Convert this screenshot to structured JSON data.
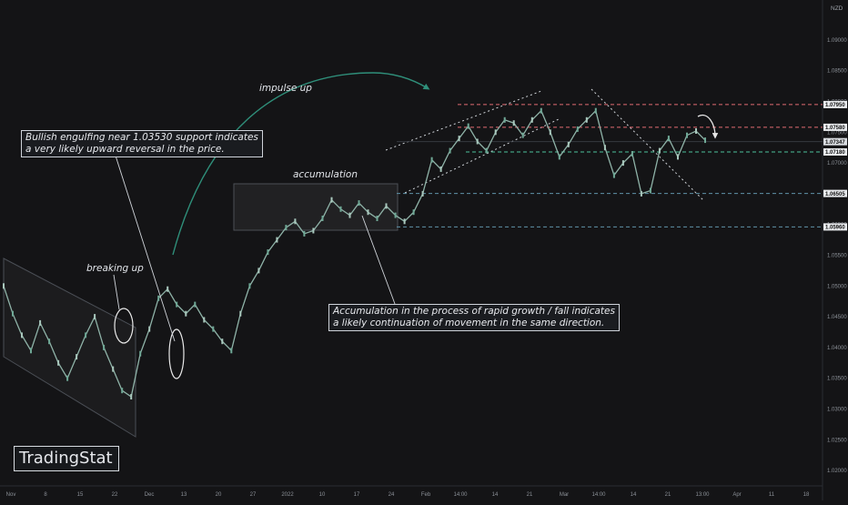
{
  "chart_data": {
    "type": "line",
    "symbol": "NZD",
    "y_ticks": [
      "1.09000",
      "1.08500",
      "1.08000",
      "1.07500",
      "1.07000",
      "1.06500",
      "1.06000",
      "1.05500",
      "1.05000",
      "1.04500",
      "1.04000",
      "1.03500",
      "1.03000",
      "1.02500",
      "1.02000"
    ],
    "ylim": [
      1.0175,
      1.0965
    ],
    "x_ticks": [
      "Nov",
      "8",
      "15",
      "22",
      "Dec",
      "13",
      "20",
      "27",
      "2022",
      "10",
      "17",
      "24",
      "Feb",
      "14:00",
      "14",
      "21",
      "Mar",
      "14:00",
      "14",
      "21",
      "13:00",
      "Apr",
      "11",
      "18"
    ],
    "series": [
      {
        "values": [
          1.05,
          1.0455,
          1.042,
          1.0395,
          1.044,
          1.041,
          1.0375,
          1.035,
          1.0385,
          1.042,
          1.045,
          1.04,
          1.0365,
          1.033,
          1.032,
          1.039,
          1.043,
          1.048,
          1.0495,
          1.047,
          1.0455,
          1.047,
          1.0445,
          1.043,
          1.041,
          1.0395,
          1.0455,
          1.05,
          1.0525,
          1.0555,
          1.0575,
          1.0595,
          1.0605,
          1.0585,
          1.059,
          1.061,
          1.064,
          1.0625,
          1.0615,
          1.0635,
          1.062,
          1.061,
          1.063,
          1.0615,
          1.0605,
          1.062,
          1.065,
          1.0705,
          1.069,
          1.072,
          1.074,
          1.076,
          1.0735,
          1.072,
          1.075,
          1.077,
          1.0765,
          1.0745,
          1.077,
          1.0785,
          1.075,
          1.071,
          1.073,
          1.0755,
          1.077,
          1.0785,
          1.0725,
          1.068,
          1.07,
          1.0715,
          1.065,
          1.0655,
          1.072,
          1.074,
          1.071,
          1.0745,
          1.0752,
          1.0737
        ]
      }
    ],
    "price_labels": [
      {
        "text": "1.07950",
        "value": 1.0795,
        "style": "red"
      },
      {
        "text": "1.07580",
        "value": 1.0758,
        "style": "red"
      },
      {
        "text": "1.07347",
        "value": 1.07347,
        "style": "current"
      },
      {
        "text": "1.07180",
        "value": 1.0718,
        "style": "green"
      },
      {
        "text": "1.06505",
        "value": 1.06505,
        "style": "teal"
      },
      {
        "text": "1.05960",
        "value": 1.0596,
        "style": "teal"
      }
    ],
    "annotations": [
      "Bullish engulfing near 1.03530 support indicates\na very likely upward reversal in the price.",
      "breaking up",
      "impulse up",
      "accumulation",
      "Accumulation in the process of rapid growth / fall indicates\na likely continuation of movement in the same direction."
    ],
    "grid": false,
    "colors": {
      "background": "#141416",
      "line": "#8fb3a8",
      "resistance": "#e06a72",
      "support": "#4cc29a",
      "level": "#5f93a8",
      "arrow": "#2f8f7a"
    }
  },
  "logo": "TradingStat"
}
